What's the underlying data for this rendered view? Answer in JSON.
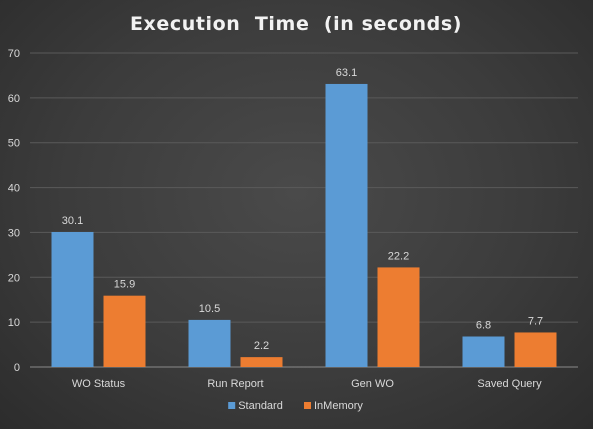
{
  "chart_data": {
    "type": "bar",
    "title": "Execution  Time  (in seconds)",
    "categories": [
      "WO Status",
      "Run Report",
      "Gen WO",
      "Saved Query"
    ],
    "series": [
      {
        "name": "Standard",
        "values": [
          30.1,
          10.5,
          63.1,
          6.8
        ],
        "color": "#5b9bd5"
      },
      {
        "name": "InMemory",
        "values": [
          15.9,
          2.2,
          22.2,
          7.7
        ],
        "color": "#ed7d31"
      }
    ],
    "ylim": [
      0,
      70
    ],
    "yticks": [
      0,
      10,
      20,
      30,
      40,
      50,
      60,
      70
    ],
    "xlabel": "",
    "ylabel": "",
    "grid": true,
    "legend": "bottom",
    "data_labels": true
  }
}
